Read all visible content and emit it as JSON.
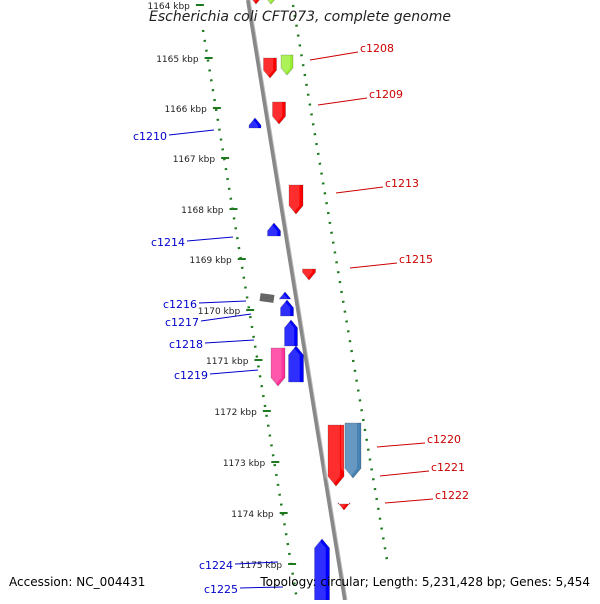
{
  "title": "Escherichia coli CFT073, complete genome",
  "footer": {
    "accession": "Accession: NC_004431",
    "summary": "Topology: circular; Length: 5,231,428 bp; Genes: 5,454"
  },
  "colors": {
    "backbone": "#888888",
    "tick": "#1f7a1f",
    "forward_label": "#cc0000",
    "reverse_label": "#0000cc",
    "forward_gene": "#ff0000",
    "reverse_gene": "#0000ff",
    "green_gene": "#99ee33",
    "pink_gene": "#ff3399",
    "steel_gene": "#4682b4",
    "grey_gene": "#666666"
  },
  "ticks": [
    "1164 kbp",
    "1165 kbp",
    "1166 kbp",
    "1167 kbp",
    "1168 kbp",
    "1169 kbp",
    "1170 kbp",
    "1171 kbp",
    "1172 kbp",
    "1173 kbp",
    "1174 kbp",
    "1175 kbp"
  ],
  "labels": {
    "forward": [
      "c1208",
      "c1209",
      "c1213",
      "c1215",
      "c1220",
      "c1221",
      "c1222"
    ],
    "reverse": [
      "c1210",
      "c1214",
      "c1216",
      "c1217",
      "c1218",
      "c1219",
      "c1224",
      "c1225"
    ]
  }
}
